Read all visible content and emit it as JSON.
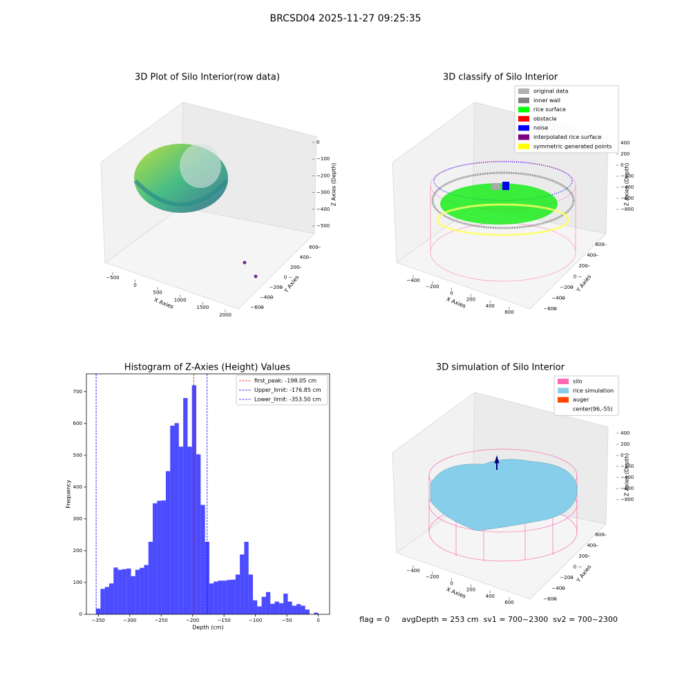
{
  "title": "BRCSD04 2025-11-27 09:25:35",
  "chart_data": [
    {
      "type": "scatter3d",
      "title": "3D Plot of Silo Interior(row data)",
      "xlabel": "X Axies",
      "ylabel": "Y Axies",
      "zlabel": "Z Axies (Depth)",
      "xticks": [
        {
          "value": -500,
          "label": "−500"
        },
        0,
        500,
        1000,
        1500,
        2000
      ],
      "yticks": [
        {
          "value": -600,
          "label": "−600"
        },
        {
          "value": -400,
          "label": "−400"
        },
        {
          "value": -200,
          "label": "−200"
        },
        0,
        200,
        400,
        600
      ],
      "zticks": [
        0,
        {
          "value": -100,
          "label": "−100"
        },
        {
          "value": -200,
          "label": "−200"
        },
        {
          "value": -300,
          "label": "−300"
        },
        {
          "value": -400,
          "label": "−400"
        },
        {
          "value": -500,
          "label": "−500"
        }
      ]
    },
    {
      "type": "scatter3d",
      "title": "3D classify of Silo Interior",
      "xlabel": "X Axies",
      "ylabel": "Y Axies",
      "zlabel": "Z Axies (Depth)",
      "legend_loc": "upper right",
      "legend": [
        {
          "name": "original data",
          "color": "#b0b0b0"
        },
        {
          "name": "inner wall",
          "color": "#808080"
        },
        {
          "name": "rice surface",
          "color": "#00ff00"
        },
        {
          "name": "obstacle",
          "color": "#ff0000"
        },
        {
          "name": "noise",
          "color": "#0000ff"
        },
        {
          "name": "interpolated rice surface",
          "color": "#800080"
        },
        {
          "name": "symmetric generated points",
          "color": "#ffff00"
        }
      ],
      "xticks": [
        {
          "value": -400,
          "label": "−400"
        },
        {
          "value": -200,
          "label": "−200"
        },
        0,
        200,
        400,
        600
      ],
      "yticks": [
        {
          "value": -600,
          "label": "−600"
        },
        {
          "value": -400,
          "label": "−400"
        },
        {
          "value": -200,
          "label": "−200"
        },
        0,
        200,
        400,
        600
      ],
      "zticks": [
        400,
        200,
        0,
        {
          "value": -200,
          "label": "−200"
        },
        {
          "value": -400,
          "label": "−400"
        },
        {
          "value": -600,
          "label": "−600"
        },
        {
          "value": -800,
          "label": "−800"
        }
      ]
    },
    {
      "type": "histogram",
      "title": "Histogram of Z-Axies (Height) Values",
      "xlabel": "Depth (cm)",
      "ylabel": "Frequency",
      "color": "#0000ff",
      "alpha": 0.7,
      "bins": [
        -353.5,
        -346.57,
        -339.64,
        -332.71,
        -325.78,
        -318.85,
        -311.92,
        -304.99,
        -298.06,
        -291.13,
        -284.2,
        -277.27,
        -270.34,
        -263.41,
        -256.48,
        -249.55,
        -242.62,
        -235.69,
        -228.76,
        -221.83,
        -214.9,
        -207.97,
        -201.04,
        -194.11,
        -187.18,
        -180.25,
        -173.32,
        -166.39,
        -159.46,
        -152.53,
        -145.6,
        -138.67,
        -131.74,
        -124.81,
        -117.88,
        -110.95,
        -104.02,
        -97.09,
        -90.16,
        -83.23,
        -76.3,
        -69.37,
        -62.44,
        -55.51,
        -48.58,
        -41.65,
        -34.72,
        -27.79,
        -20.86,
        -13.93,
        -7,
        -0.07
      ],
      "counts": [
        18,
        80,
        86,
        97,
        147,
        140,
        142,
        144,
        120,
        140,
        146,
        155,
        228,
        349,
        357,
        358,
        450,
        593,
        601,
        527,
        680,
        527,
        720,
        503,
        344,
        228,
        97,
        103,
        106,
        106,
        108,
        109,
        125,
        188,
        228,
        125,
        44,
        25,
        55,
        70,
        33,
        40,
        35,
        65,
        40,
        27,
        32,
        27,
        15,
        0,
        5
      ],
      "lines": [
        {
          "label": "first_peak: -198.05 cm",
          "value": -198.05,
          "color": "#ff0000"
        },
        {
          "label": "Upper_limit: -176.85 cm",
          "value": -176.85,
          "color": "#0000ff"
        },
        {
          "label": "Lower_limit: -353.50 cm",
          "value": -353.5,
          "color": "#0000ff"
        }
      ],
      "legend_loc": "upper right",
      "xlim": [
        -369,
        18
      ],
      "ylim": [
        0,
        756
      ],
      "xticks": [
        {
          "value": -350,
          "label": "−350"
        },
        {
          "value": -300,
          "label": "−300"
        },
        {
          "value": -250,
          "label": "−250"
        },
        {
          "value": -200,
          "label": "−200"
        },
        {
          "value": -150,
          "label": "−150"
        },
        {
          "value": -100,
          "label": "−100"
        },
        {
          "value": -50,
          "label": "−50"
        },
        0
      ],
      "yticks": [
        0,
        100,
        200,
        300,
        400,
        500,
        600,
        700
      ]
    },
    {
      "type": "surface3d",
      "title": "3D simulation of Silo Interior",
      "xlabel": "X Axies",
      "ylabel": "Y Axies",
      "zlabel": "Z Axies (Depth)",
      "legend_loc": "upper right",
      "legend": [
        {
          "name": "silo",
          "color": "#ff69b4"
        },
        {
          "name": "rice simulation",
          "color": "#87ceeb"
        },
        {
          "name": "auger",
          "color": "#ff4500"
        },
        {
          "name": "center(96,-55)",
          "color": "#ffffff"
        }
      ],
      "xticks": [
        {
          "value": -400,
          "label": "−400"
        },
        {
          "value": -200,
          "label": "−200"
        },
        0,
        200,
        400,
        600
      ],
      "yticks": [
        {
          "value": -600,
          "label": "−600"
        },
        {
          "value": -400,
          "label": "−400"
        },
        {
          "value": -200,
          "label": "−200"
        },
        0,
        200,
        400,
        600
      ],
      "zticks": [
        400,
        200,
        0,
        {
          "value": -200,
          "label": "−200"
        },
        {
          "value": -400,
          "label": "−400"
        },
        {
          "value": -600,
          "label": "−600"
        },
        {
          "value": -800,
          "label": "−800"
        }
      ]
    }
  ],
  "footer": "flag = 0     avgDepth = 253 cm  sv1 = 700~2300  sv2 = 700~2300"
}
